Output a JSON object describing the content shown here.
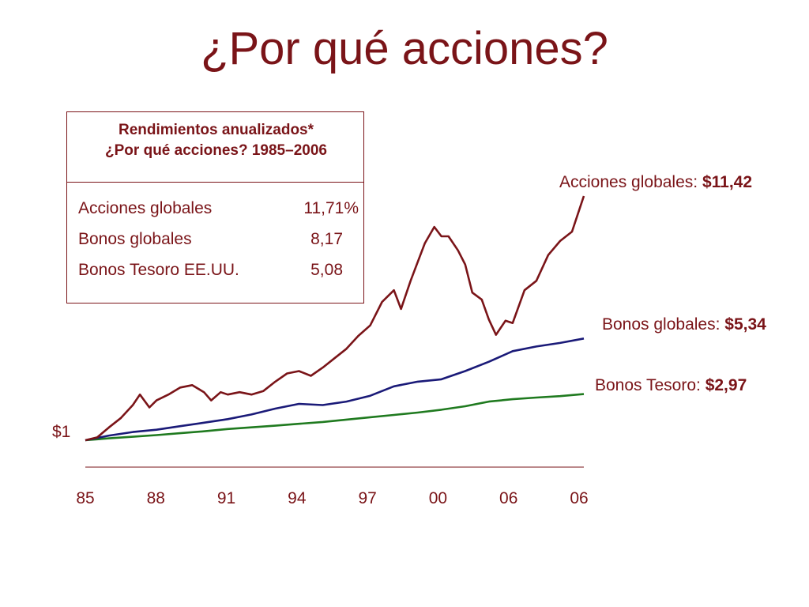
{
  "title": "¿Por qué acciones?",
  "returns_box": {
    "header_line1": "Rendimientos anualizados*",
    "header_line2": "¿Por qué acciones? 1985–2006",
    "rows": [
      {
        "label": "Acciones globales",
        "value": "11,71%"
      },
      {
        "label": "Bonos globales",
        "value": "8,17"
      },
      {
        "label": "Bonos Tesoro EE.UU.",
        "value": "5,08"
      }
    ]
  },
  "end_labels": {
    "stocks": {
      "prefix": "Acciones globales: ",
      "value": "$11,42"
    },
    "global_bonds": {
      "prefix": "Bonos globales: ",
      "value": "$5,34"
    },
    "treasury": {
      "prefix": "Bonos Tesoro: ",
      "value": "$2,97"
    }
  },
  "start_label": "$1",
  "colors": {
    "text": "#7a1418",
    "stocks": "#7a1418",
    "global_bonds": "#1a1a78",
    "treasury": "#1f7a1f",
    "axis": "#7a1418"
  },
  "chart_data": {
    "type": "line",
    "xlabel": "",
    "ylabel": "",
    "x_ticks": [
      "85",
      "88",
      "91",
      "94",
      "97",
      "00",
      "06",
      "06"
    ],
    "xlim": [
      1985,
      2006
    ],
    "ylim": [
      0,
      11.5
    ],
    "grid": false,
    "series": [
      {
        "name": "Acciones globales",
        "color_key": "stocks",
        "x": [
          1985,
          1985.5,
          1986,
          1986.5,
          1987,
          1987.3,
          1987.7,
          1988,
          1988.5,
          1989,
          1989.5,
          1990,
          1990.3,
          1990.7,
          1991,
          1991.5,
          1992,
          1992.5,
          1993,
          1993.5,
          1994,
          1994.5,
          1995,
          1995.5,
          1996,
          1996.5,
          1997,
          1997.5,
          1998,
          1998.3,
          1998.7,
          1999,
          1999.3,
          1999.7,
          2000,
          2000.3,
          2000.7,
          2001,
          2001.3,
          2001.7,
          2002,
          2002.3,
          2002.7,
          2003,
          2003.5,
          2004,
          2004.5,
          2005,
          2005.5,
          2006
        ],
        "y": [
          1,
          1.12,
          1.55,
          1.95,
          2.5,
          2.95,
          2.4,
          2.7,
          2.95,
          3.25,
          3.35,
          3.05,
          2.7,
          3.05,
          2.95,
          3.05,
          2.95,
          3.1,
          3.5,
          3.85,
          3.95,
          3.75,
          4.1,
          4.5,
          4.9,
          5.45,
          5.9,
          6.9,
          7.4,
          6.6,
          7.8,
          8.6,
          9.4,
          10.1,
          9.7,
          9.7,
          9.1,
          8.5,
          7.3,
          7.0,
          6.15,
          5.5,
          6.1,
          6.0,
          7.4,
          7.8,
          8.9,
          9.5,
          9.9,
          11.42
        ]
      },
      {
        "name": "Bonos globales",
        "color_key": "global_bonds",
        "x": [
          1985,
          1986,
          1987,
          1988,
          1989,
          1990,
          1991,
          1992,
          1993,
          1994,
          1995,
          1996,
          1997,
          1998,
          1999,
          2000,
          2001,
          2002,
          2003,
          2004,
          2005,
          2006
        ],
        "y": [
          1,
          1.2,
          1.35,
          1.45,
          1.6,
          1.75,
          1.9,
          2.1,
          2.35,
          2.55,
          2.5,
          2.65,
          2.9,
          3.3,
          3.5,
          3.6,
          3.95,
          4.35,
          4.8,
          5.0,
          5.15,
          5.34
        ]
      },
      {
        "name": "Bonos Tesoro",
        "color_key": "treasury",
        "x": [
          1985,
          1986,
          1987,
          1988,
          1989,
          1990,
          1991,
          1992,
          1993,
          1994,
          1995,
          1996,
          1997,
          1998,
          1999,
          2000,
          2001,
          2002,
          2003,
          2004,
          2005,
          2006
        ],
        "y": [
          1,
          1.08,
          1.15,
          1.22,
          1.3,
          1.38,
          1.48,
          1.55,
          1.62,
          1.7,
          1.78,
          1.88,
          1.98,
          2.08,
          2.18,
          2.3,
          2.45,
          2.65,
          2.75,
          2.82,
          2.88,
          2.97
        ]
      }
    ]
  }
}
